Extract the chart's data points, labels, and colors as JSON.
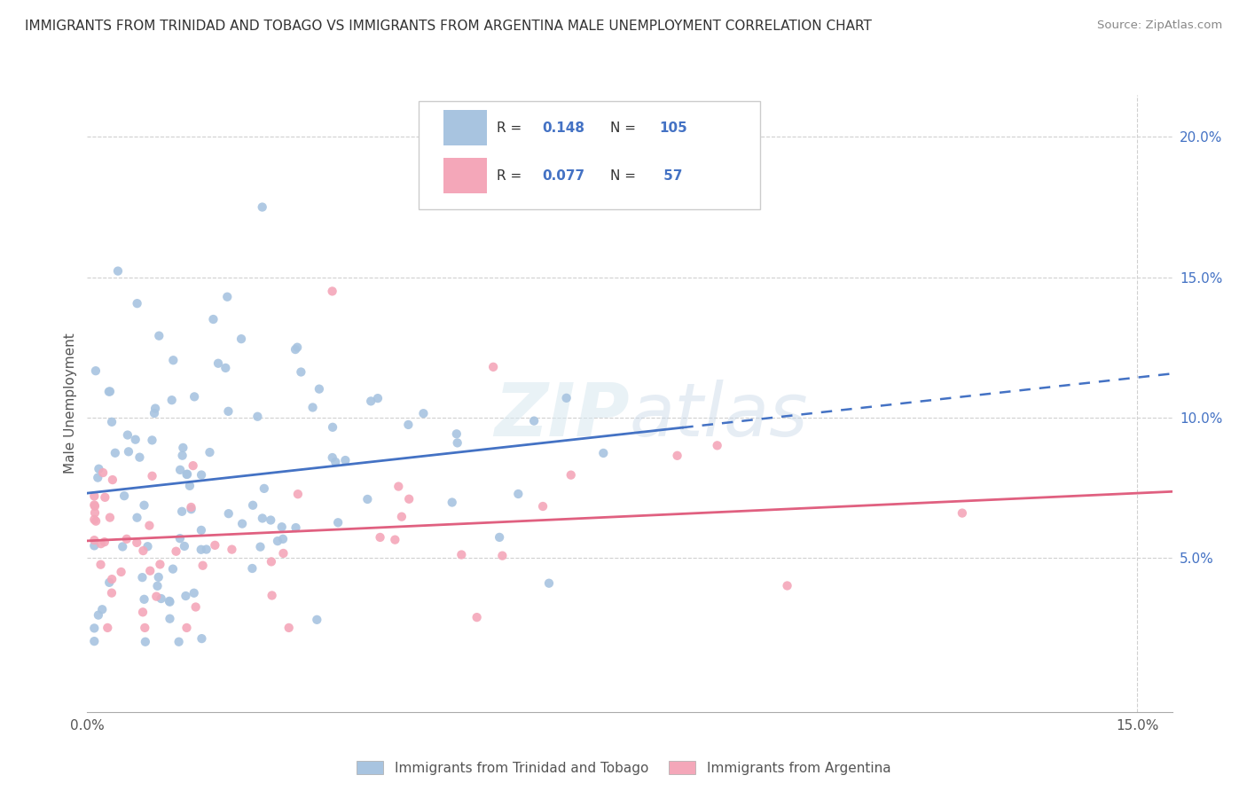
{
  "title": "IMMIGRANTS FROM TRINIDAD AND TOBAGO VS IMMIGRANTS FROM ARGENTINA MALE UNEMPLOYMENT CORRELATION CHART",
  "source": "Source: ZipAtlas.com",
  "ylabel_label": "Male Unemployment",
  "legend_labels": [
    "Immigrants from Trinidad and Tobago",
    "Immigrants from Argentina"
  ],
  "series1": {
    "name": "Immigrants from Trinidad and Tobago",
    "color": "#a8c4e0",
    "line_color": "#4472c4",
    "R": 0.148,
    "N": 105
  },
  "series2": {
    "name": "Immigrants from Argentina",
    "color": "#f4a7b9",
    "line_color": "#e06080",
    "R": 0.077,
    "N": 57
  },
  "xlim": [
    0.0,
    0.155
  ],
  "ylim": [
    -0.005,
    0.215
  ],
  "right_yticks": [
    0.05,
    0.1,
    0.15,
    0.2
  ],
  "right_ytick_labels": [
    "5.0%",
    "10.0%",
    "15.0%",
    "20.0%"
  ],
  "watermark": "ZIPatlas",
  "bg_color": "#ffffff",
  "grid_color": "#d0d0d0"
}
